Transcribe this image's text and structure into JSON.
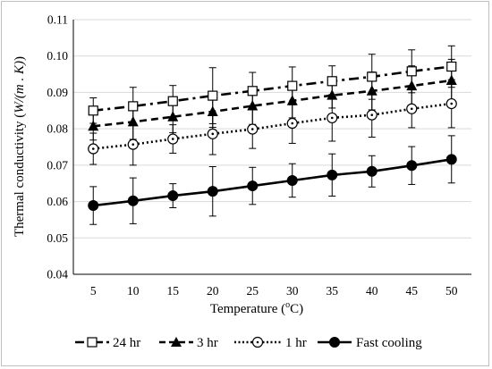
{
  "chart_data": {
    "type": "line",
    "title": "",
    "xlabel": "Temperature (",
    "xlabel_sup": "o",
    "xlabel_end": "C)",
    "ylabel_prefix": "Thermal conductivity (",
    "ylabel_italic": "W/(m . K)",
    "ylabel_suffix": ")",
    "x": [
      5,
      10,
      15,
      20,
      25,
      30,
      35,
      40,
      45,
      50
    ],
    "xlim": [
      2.5,
      52.5
    ],
    "ylim": [
      0.04,
      0.11
    ],
    "yticks": [
      "0.04",
      "0.05",
      "0.06",
      "0.07",
      "0.08",
      "0.09",
      "0.10",
      "0.11"
    ],
    "grid": "horizontal",
    "legend_position": "bottom",
    "series": [
      {
        "name": "24 hr",
        "marker": "square-open",
        "line": "dash-dot",
        "values": [
          0.085,
          0.0862,
          0.0876,
          0.0891,
          0.0904,
          0.0918,
          0.0931,
          0.0943,
          0.0958,
          0.0971
        ],
        "error": [
          0.0035,
          0.0052,
          0.0043,
          0.0077,
          0.0051,
          0.0052,
          0.0042,
          0.0062,
          0.0059,
          0.0057
        ]
      },
      {
        "name": "3 hr",
        "marker": "triangle-filled",
        "line": "dashed",
        "values": [
          0.0807,
          0.0819,
          0.0833,
          0.0847,
          0.0863,
          0.0877,
          0.0892,
          0.0904,
          0.0918,
          0.0933
        ],
        "error": [
          0.0038,
          0.0048,
          0.0044,
          0.0043,
          0.0051,
          0.0047,
          0.0035,
          0.0052,
          0.0055,
          0.0058
        ]
      },
      {
        "name": "1 hr",
        "marker": "circle-dot-open",
        "line": "dotted",
        "values": [
          0.0745,
          0.0757,
          0.0772,
          0.0786,
          0.0799,
          0.0815,
          0.083,
          0.0838,
          0.0855,
          0.0869
        ],
        "error": [
          0.0043,
          0.0057,
          0.0039,
          0.0057,
          0.0053,
          0.0055,
          0.0064,
          0.0061,
          0.0052,
          0.0066
        ]
      },
      {
        "name": "Fast cooling",
        "marker": "circle-filled",
        "line": "solid",
        "values": [
          0.0589,
          0.0602,
          0.0616,
          0.0628,
          0.0643,
          0.0658,
          0.0673,
          0.0683,
          0.0699,
          0.0716
        ],
        "error": [
          0.0052,
          0.0063,
          0.0033,
          0.0068,
          0.0051,
          0.0046,
          0.0058,
          0.0043,
          0.0052,
          0.0065
        ]
      }
    ]
  }
}
